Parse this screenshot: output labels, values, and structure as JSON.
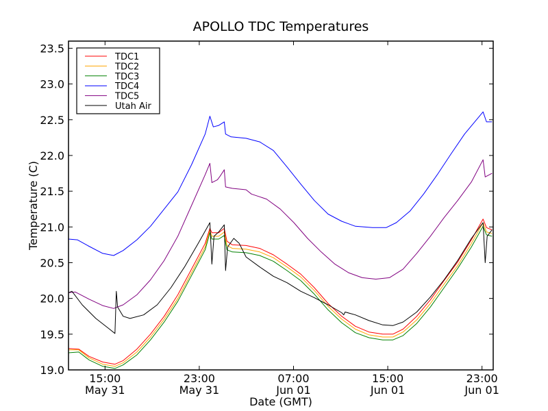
{
  "chart_data": {
    "type": "line",
    "title": "APOLLO TDC Temperatures",
    "xlabel": "Date (GMT)",
    "ylabel": "Temperature (C)",
    "x_units": "hours since May 31 00:00 GMT",
    "xlim": [
      11.9,
      47.95
    ],
    "ylim": [
      19.0,
      23.6
    ],
    "grid": false,
    "legend_position": "top-left",
    "y_ticks": [
      {
        "value": 19.0,
        "label": "19.0"
      },
      {
        "value": 19.5,
        "label": "19.5"
      },
      {
        "value": 20.0,
        "label": "20.0"
      },
      {
        "value": 20.5,
        "label": "20.5"
      },
      {
        "value": 21.0,
        "label": "21.0"
      },
      {
        "value": 21.5,
        "label": "21.5"
      },
      {
        "value": 22.0,
        "label": "22.0"
      },
      {
        "value": 22.5,
        "label": "22.5"
      },
      {
        "value": 23.0,
        "label": "23.0"
      },
      {
        "value": 23.5,
        "label": "23.5"
      }
    ],
    "x_ticks": [
      {
        "value": 15,
        "time": "15:00",
        "date": "May 31"
      },
      {
        "value": 23,
        "time": "23:00",
        "date": "May 31"
      },
      {
        "value": 31,
        "time": "07:00",
        "date": "Jun 01"
      },
      {
        "value": 39,
        "time": "15:00",
        "date": "Jun 01"
      },
      {
        "value": 47,
        "time": "23:00",
        "date": "Jun 01"
      }
    ],
    "series": [
      {
        "name": "TDC1",
        "color": "#ff0000",
        "x": [
          11.9,
          12.77,
          13.64,
          14.8,
          15.84,
          16.54,
          17.7,
          18.86,
          20.02,
          21.18,
          22.34,
          23.5,
          23.9,
          24.07,
          24.65,
          25.12,
          25.35,
          25.81,
          26.97,
          28.13,
          29.29,
          30.45,
          31.61,
          32.77,
          33.93,
          35.09,
          36.25,
          37.41,
          38.57,
          39.44,
          40.3,
          41.46,
          42.62,
          43.78,
          44.94,
          46.1,
          47.09,
          47.38,
          47.85
        ],
        "y": [
          19.3,
          19.29,
          19.19,
          19.11,
          19.08,
          19.13,
          19.29,
          19.5,
          19.75,
          20.05,
          20.41,
          20.77,
          20.98,
          20.92,
          20.92,
          20.98,
          20.8,
          20.75,
          20.74,
          20.7,
          20.61,
          20.48,
          20.34,
          20.15,
          19.93,
          19.75,
          19.61,
          19.53,
          19.5,
          19.5,
          19.57,
          19.75,
          19.98,
          20.25,
          20.51,
          20.82,
          21.11,
          20.99,
          20.96
        ]
      },
      {
        "name": "TDC2",
        "color": "#ffa500",
        "x": [
          11.9,
          12.77,
          13.64,
          14.8,
          15.84,
          16.54,
          17.7,
          18.86,
          20.02,
          21.18,
          22.34,
          23.5,
          23.9,
          24.07,
          24.65,
          25.12,
          25.35,
          25.81,
          26.97,
          28.13,
          29.29,
          30.45,
          31.61,
          32.77,
          33.93,
          35.09,
          36.25,
          37.41,
          38.57,
          39.44,
          40.3,
          41.46,
          42.62,
          43.78,
          44.94,
          46.1,
          47.09,
          47.38,
          47.85
        ],
        "y": [
          19.28,
          19.28,
          19.17,
          19.08,
          19.05,
          19.1,
          19.25,
          19.46,
          19.71,
          20.0,
          20.36,
          20.72,
          20.95,
          20.87,
          20.87,
          20.93,
          20.74,
          20.7,
          20.69,
          20.65,
          20.57,
          20.44,
          20.3,
          20.11,
          19.89,
          19.71,
          19.57,
          19.49,
          19.46,
          19.46,
          19.53,
          19.7,
          19.93,
          20.2,
          20.46,
          20.77,
          21.06,
          20.93,
          20.91
        ]
      },
      {
        "name": "TDC3",
        "color": "#008000",
        "x": [
          11.9,
          12.77,
          13.64,
          14.8,
          15.84,
          16.54,
          17.7,
          18.86,
          20.02,
          21.18,
          22.34,
          23.5,
          23.9,
          24.07,
          24.65,
          25.12,
          25.35,
          25.81,
          26.97,
          28.13,
          29.29,
          30.45,
          31.61,
          32.77,
          33.93,
          35.09,
          36.25,
          37.41,
          38.57,
          39.44,
          40.3,
          41.46,
          42.62,
          43.78,
          44.94,
          46.1,
          47.09,
          47.38,
          47.85
        ],
        "y": [
          19.24,
          19.25,
          19.14,
          19.05,
          19.02,
          19.07,
          19.21,
          19.42,
          19.67,
          19.96,
          20.32,
          20.68,
          20.92,
          20.83,
          20.83,
          20.88,
          20.68,
          20.65,
          20.64,
          20.6,
          20.52,
          20.39,
          20.25,
          20.06,
          19.84,
          19.66,
          19.52,
          19.45,
          19.42,
          19.42,
          19.48,
          19.65,
          19.88,
          20.15,
          20.42,
          20.72,
          21.01,
          20.89,
          20.87
        ]
      },
      {
        "name": "TDC4",
        "color": "#0000ff",
        "x": [
          11.9,
          12.65,
          13.64,
          14.8,
          15.73,
          16.54,
          17.7,
          18.86,
          20.02,
          21.18,
          22.34,
          23.5,
          23.9,
          24.19,
          24.65,
          25.12,
          25.23,
          25.7,
          26.97,
          28.13,
          29.29,
          30.45,
          31.61,
          32.77,
          33.93,
          35.09,
          36.25,
          37.7,
          38.86,
          39.73,
          40.88,
          42.04,
          43.2,
          44.36,
          45.52,
          47.09,
          47.38,
          47.85
        ],
        "y": [
          20.83,
          20.82,
          20.73,
          20.63,
          20.6,
          20.67,
          20.82,
          21.01,
          21.25,
          21.49,
          21.87,
          22.3,
          22.55,
          22.4,
          22.42,
          22.47,
          22.3,
          22.26,
          22.24,
          22.19,
          22.07,
          21.84,
          21.6,
          21.37,
          21.18,
          21.08,
          21.01,
          20.99,
          20.99,
          21.06,
          21.22,
          21.46,
          21.73,
          22.02,
          22.3,
          22.61,
          22.47,
          22.47
        ]
      },
      {
        "name": "TDC5",
        "color": "#800080",
        "x": [
          11.9,
          12.48,
          13.64,
          14.8,
          15.73,
          16.54,
          17.7,
          18.86,
          20.02,
          21.18,
          22.34,
          23.5,
          23.9,
          24.07,
          24.54,
          24.77,
          25.12,
          25.23,
          25.81,
          26.97,
          27.43,
          28.71,
          29.87,
          31.03,
          32.19,
          33.35,
          34.51,
          35.67,
          36.83,
          37.99,
          39.14,
          40.3,
          41.46,
          42.62,
          43.78,
          44.94,
          46.1,
          47.09,
          47.27,
          47.85
        ],
        "y": [
          20.08,
          20.09,
          19.99,
          19.9,
          19.86,
          19.91,
          20.05,
          20.26,
          20.53,
          20.87,
          21.3,
          21.73,
          21.89,
          21.62,
          21.66,
          21.71,
          21.8,
          21.56,
          21.54,
          21.52,
          21.46,
          21.39,
          21.25,
          21.06,
          20.84,
          20.65,
          20.48,
          20.36,
          20.29,
          20.27,
          20.29,
          20.41,
          20.63,
          20.87,
          21.13,
          21.37,
          21.63,
          21.94,
          21.7,
          21.75
        ]
      },
      {
        "name": "Utah Air",
        "color": "#000000",
        "x": [
          11.9,
          12.19,
          13.06,
          14.22,
          15.38,
          15.84,
          15.96,
          16.07,
          16.54,
          17.12,
          18.28,
          19.43,
          20.59,
          21.75,
          22.91,
          23.9,
          24.07,
          24.25,
          24.65,
          25.12,
          25.23,
          25.41,
          25.93,
          26.39,
          26.97,
          28.13,
          29.29,
          30.45,
          31.61,
          32.77,
          33.93,
          35.09,
          35.26,
          35.38,
          36.25,
          37.41,
          38.57,
          39.43,
          40.3,
          41.46,
          42.62,
          43.78,
          44.94,
          46.1,
          47.09,
          47.27,
          47.44,
          47.85
        ],
        "y": [
          20.08,
          20.1,
          19.91,
          19.72,
          19.57,
          19.51,
          20.1,
          19.88,
          19.75,
          19.72,
          19.77,
          19.91,
          20.15,
          20.44,
          20.77,
          21.06,
          20.48,
          20.87,
          20.93,
          21.03,
          20.39,
          20.72,
          20.84,
          20.77,
          20.58,
          20.44,
          20.31,
          20.22,
          20.1,
          20.01,
          19.91,
          19.8,
          19.77,
          19.81,
          19.77,
          19.69,
          19.63,
          19.62,
          19.67,
          19.81,
          20.02,
          20.26,
          20.53,
          20.84,
          21.06,
          20.5,
          20.87,
          20.96
        ]
      }
    ]
  }
}
